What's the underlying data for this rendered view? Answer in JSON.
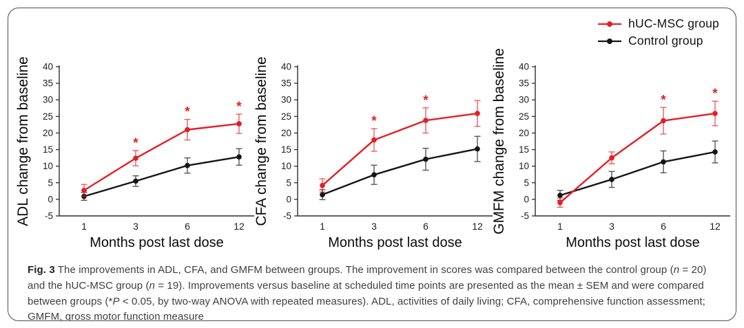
{
  "card": {
    "border_color": "#4d4d4d",
    "background": "#ffffff"
  },
  "colors": {
    "huc_msc": "#e41e24",
    "control": "#151515",
    "axis": "#2b2b2b",
    "tick_text": "#1d1d1d"
  },
  "legend": {
    "items": [
      {
        "label": "hUC-MSC group",
        "color": "#e41e24"
      },
      {
        "label": "Control group",
        "color": "#151515"
      }
    ]
  },
  "caption": {
    "label": "Fig. 3",
    "segments": [
      {
        "t": " The improvements in ADL, CFA, and GMFM between groups. The improvement in scores was compared between the control group ("
      },
      {
        "t": "n",
        "i": true
      },
      {
        "t": " = 20) and the hUC-MSC group ("
      },
      {
        "t": "n",
        "i": true
      },
      {
        "t": " = 19). Improvements versus baseline at scheduled time points are presented as the mean ± SEM and were compared between groups (*"
      },
      {
        "t": "P",
        "i": true
      },
      {
        "t": " < 0.05, by two-way ANOVA with repeated measures). ADL, activities of daily living; CFA, comprehensive function assessment; GMFM, gross motor function measure"
      }
    ]
  },
  "chart_data": [
    {
      "type": "line",
      "title": "",
      "ylabel": "ADL change from baseline",
      "xlabel": "Months post last dose",
      "categories": [
        "1",
        "3",
        "6",
        "12"
      ],
      "ylim": [
        -5,
        40
      ],
      "yticks": [
        40,
        35,
        30,
        25,
        20,
        15,
        10,
        5,
        0,
        -5
      ],
      "grid": false,
      "error_bars": "SEM",
      "series": [
        {
          "name": "hUC-MSC group",
          "color": "#e41e24",
          "values": [
            2.7,
            12.4,
            21.0,
            22.8
          ],
          "sem": [
            1.8,
            2.3,
            3.1,
            2.9
          ],
          "sig": [
            false,
            true,
            true,
            true
          ]
        },
        {
          "name": "Control group",
          "color": "#151515",
          "values": [
            0.9,
            5.5,
            10.2,
            12.8
          ],
          "sem": [
            1.2,
            1.6,
            2.3,
            2.5
          ],
          "sig": [
            false,
            false,
            false,
            false
          ]
        }
      ]
    },
    {
      "type": "line",
      "title": "",
      "ylabel": "CFA change from baseline",
      "xlabel": "Months post last dose",
      "categories": [
        "1",
        "3",
        "6",
        "12"
      ],
      "ylim": [
        -5,
        40
      ],
      "yticks": [
        40,
        35,
        30,
        25,
        20,
        15,
        10,
        5,
        0,
        -5
      ],
      "grid": false,
      "error_bars": "SEM",
      "series": [
        {
          "name": "hUC-MSC group",
          "color": "#e41e24",
          "values": [
            4.2,
            17.9,
            23.8,
            25.9
          ],
          "sem": [
            2.0,
            3.4,
            3.8,
            3.9
          ],
          "sig": [
            false,
            true,
            true,
            false
          ]
        },
        {
          "name": "Control group",
          "color": "#151515",
          "values": [
            1.4,
            7.4,
            12.1,
            15.2
          ],
          "sem": [
            1.5,
            2.9,
            3.3,
            3.8
          ],
          "sig": [
            false,
            false,
            false,
            false
          ]
        }
      ]
    },
    {
      "type": "line",
      "title": "",
      "ylabel": "GMFM change from baseline",
      "xlabel": "Months post last dose",
      "categories": [
        "1",
        "3",
        "6",
        "12"
      ],
      "ylim": [
        -5,
        40
      ],
      "yticks": [
        40,
        35,
        30,
        25,
        20,
        15,
        10,
        5,
        0,
        -5
      ],
      "grid": false,
      "error_bars": "SEM",
      "series": [
        {
          "name": "hUC-MSC group",
          "color": "#e41e24",
          "values": [
            -1.0,
            12.5,
            23.7,
            25.9
          ],
          "sem": [
            1.4,
            1.8,
            4.0,
            3.7
          ],
          "sig": [
            false,
            false,
            true,
            true
          ]
        },
        {
          "name": "Control group",
          "color": "#151515",
          "values": [
            1.2,
            6.0,
            11.3,
            14.3
          ],
          "sem": [
            1.5,
            2.4,
            3.3,
            3.3
          ],
          "sig": [
            false,
            false,
            false,
            false
          ]
        }
      ]
    }
  ]
}
